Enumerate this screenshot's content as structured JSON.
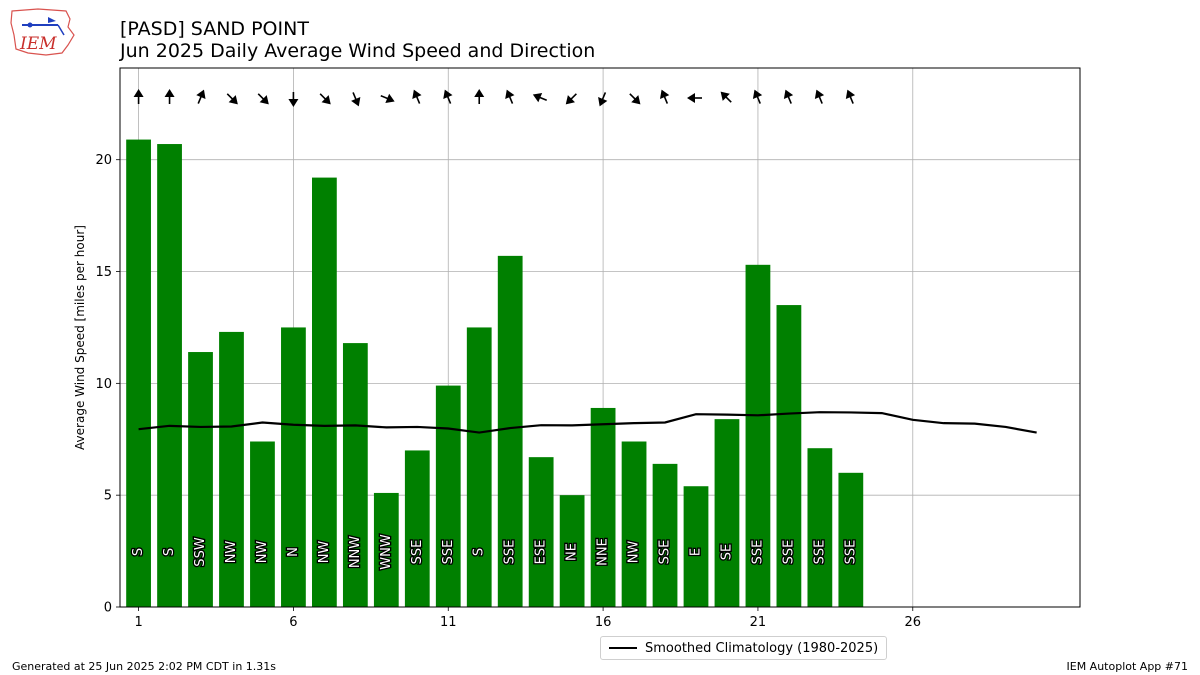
{
  "title_line1": "[PASD] SAND POINT",
  "title_line2": "Jun 2025 Daily Average Wind Speed and Direction",
  "logo_text": "IEM",
  "footer_left": "Generated at 25 Jun 2025 2:02 PM CDT in 1.31s",
  "footer_right": "IEM Autoplot App #71",
  "colors": {
    "bar": "#008000",
    "climatology": "#000000",
    "grid": "#b0b0b0"
  },
  "chart_data": {
    "type": "bar",
    "xlabel": "",
    "ylabel": "Average Wind Speed [miles per hour]",
    "xlim": [
      0.4,
      31.4
    ],
    "ylim": [
      0,
      24.1
    ],
    "xticks": [
      1,
      6,
      11,
      16,
      21,
      26
    ],
    "yticks": [
      0,
      5,
      10,
      15,
      20
    ],
    "grid": true,
    "legend_position": "bottom-center",
    "days": [
      1,
      2,
      3,
      4,
      5,
      6,
      7,
      8,
      9,
      10,
      11,
      12,
      13,
      14,
      15,
      16,
      17,
      18,
      19,
      20,
      21,
      22,
      23,
      24
    ],
    "speeds": [
      20.9,
      20.7,
      11.4,
      12.3,
      7.4,
      12.5,
      19.2,
      11.8,
      5.1,
      7.0,
      9.9,
      12.5,
      15.7,
      6.7,
      5.0,
      8.9,
      7.4,
      6.4,
      5.4,
      8.4,
      15.3,
      13.5,
      7.1,
      6.0
    ],
    "directions": [
      "S",
      "S",
      "SSW",
      "NW",
      "NW",
      "N",
      "NW",
      "NNW",
      "WNW",
      "SSE",
      "SSE",
      "S",
      "SSE",
      "ESE",
      "NE",
      "NNE",
      "NW",
      "SSE",
      "E",
      "SE",
      "SSE",
      "SSE",
      "SSE",
      "SSE"
    ],
    "climatology": {
      "name": "Smoothed Climatology (1980-2025)",
      "x": [
        1,
        2,
        3,
        4,
        5,
        6,
        7,
        8,
        9,
        10,
        11,
        12,
        13,
        14,
        15,
        16,
        17,
        18,
        19,
        20,
        21,
        22,
        23,
        24,
        25,
        26,
        27,
        28,
        29,
        30
      ],
      "y": [
        7.95,
        8.1,
        8.05,
        8.07,
        8.25,
        8.15,
        8.1,
        8.12,
        8.03,
        8.05,
        7.98,
        7.8,
        8.0,
        8.13,
        8.12,
        8.17,
        8.22,
        8.25,
        8.62,
        8.6,
        8.57,
        8.65,
        8.71,
        8.7,
        8.67,
        8.37,
        8.22,
        8.2,
        8.05,
        7.8
      ]
    }
  }
}
